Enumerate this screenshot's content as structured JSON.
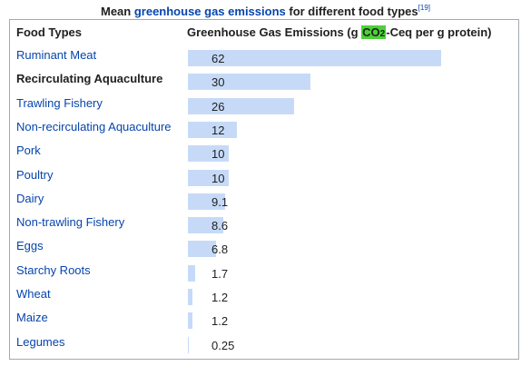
{
  "caption": {
    "prefix": "Mean ",
    "link": "greenhouse gas emissions",
    "suffix": " for different food types",
    "ref": "[19]"
  },
  "header": {
    "col1": "Food Types",
    "col2_prefix": "Greenhouse Gas Emissions (g ",
    "col2_co": "CO",
    "col2_sub": "2",
    "col2_suffix": "-Ceq per g protein)"
  },
  "colors": {
    "bar": "#c6daf8",
    "link": "#0645ad",
    "co2_highlight": "#4cd137"
  },
  "chart_data": {
    "type": "bar",
    "orientation": "horizontal",
    "title": "Mean greenhouse gas emissions for different food types",
    "xlabel": "Greenhouse Gas Emissions (g CO2-Ceq per g protein)",
    "ylabel": "Food Types",
    "xlim": [
      0,
      62
    ],
    "categories": [
      "Ruminant Meat",
      "Recirculating Aquaculture",
      "Trawling Fishery",
      "Non-recirculating Aquaculture",
      "Pork",
      "Poultry",
      "Dairy",
      "Non-trawling Fishery",
      "Eggs",
      "Starchy Roots",
      "Wheat",
      "Maize",
      "Legumes"
    ],
    "values": [
      62,
      30,
      26,
      12,
      10,
      10,
      9.1,
      8.6,
      6.8,
      1.7,
      1.2,
      1.2,
      0.25
    ],
    "value_labels": [
      "62",
      "30",
      "26",
      "12",
      "10",
      "10",
      "9.1",
      "8.6",
      "6.8",
      "1.7",
      "1.2",
      "1.2",
      "0.25"
    ],
    "linked": [
      true,
      false,
      true,
      true,
      true,
      true,
      true,
      true,
      true,
      true,
      true,
      true,
      true
    ]
  }
}
